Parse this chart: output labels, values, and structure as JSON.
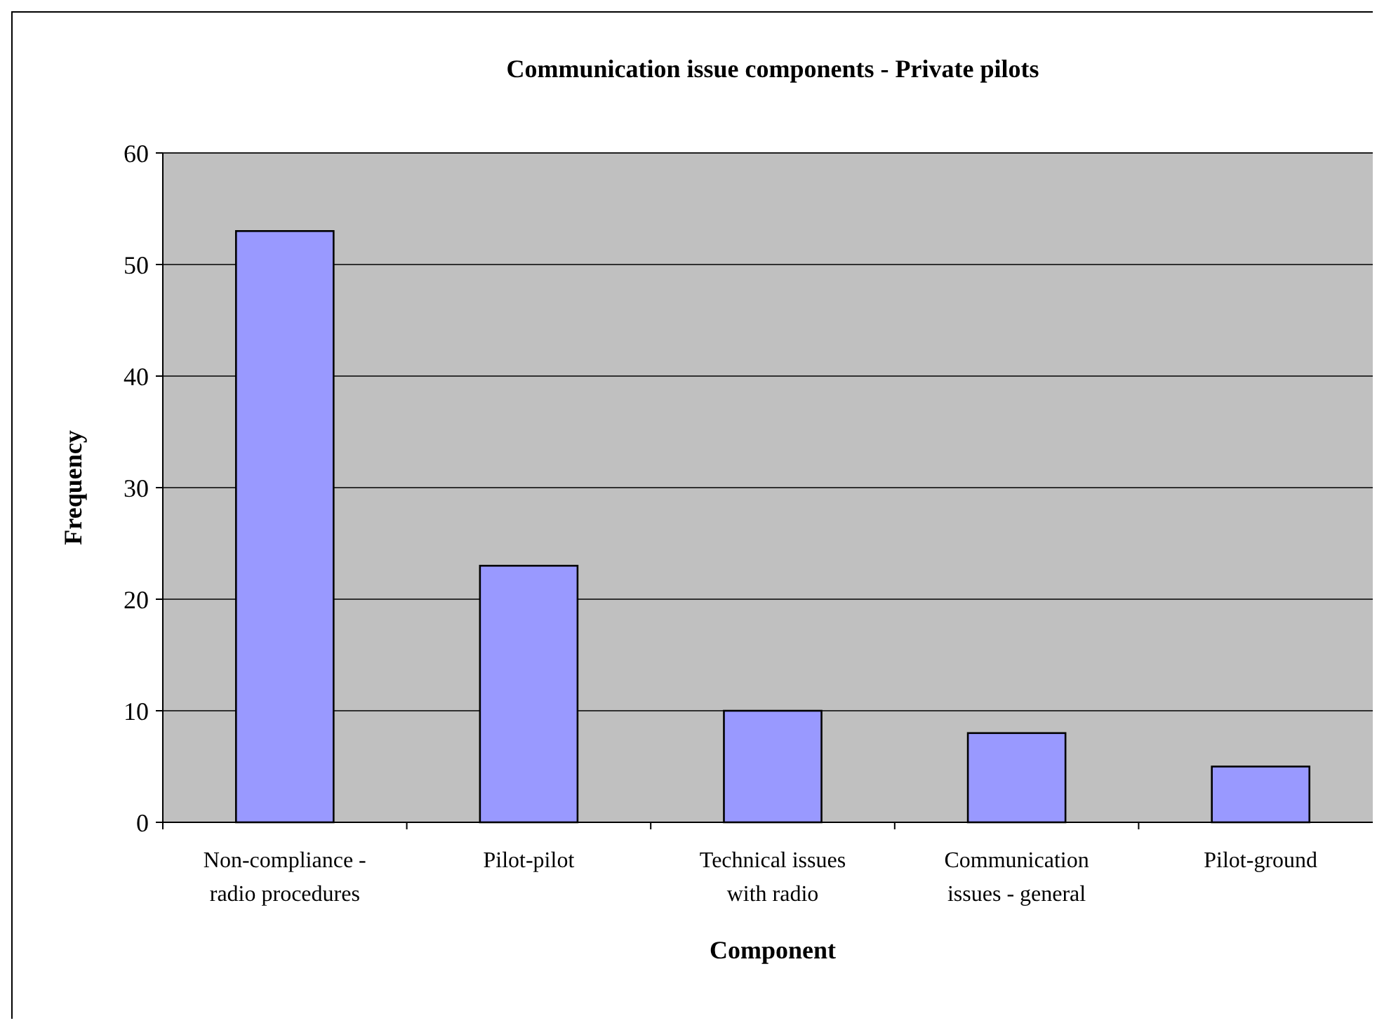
{
  "chart_data": {
    "type": "bar",
    "title": "Communication issue components - Private pilots",
    "xlabel": "Component",
    "ylabel": "Frequency",
    "categories": [
      "Non-compliance - radio procedures",
      "Pilot-pilot",
      "Technical issues with radio",
      "Communication issues - general",
      "Pilot-ground"
    ],
    "values": [
      53,
      23,
      10,
      8,
      5
    ],
    "color": "#9999ff",
    "ylim": [
      0,
      60
    ],
    "yticks": [
      0,
      10,
      20,
      30,
      40,
      50,
      60
    ],
    "grid": "y"
  }
}
